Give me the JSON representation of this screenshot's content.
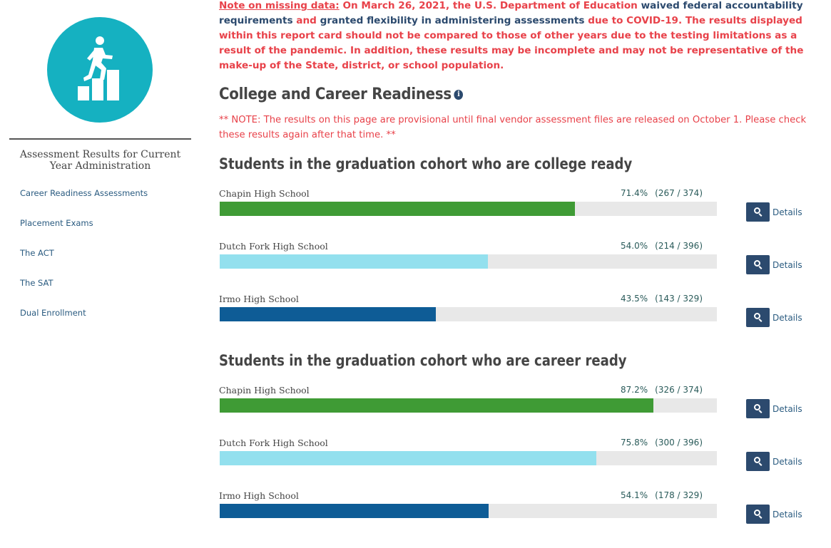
{
  "sidebar": {
    "heading": "Assessment Results for Current Year Administration",
    "items": [
      {
        "label": "Career Readiness Assessments"
      },
      {
        "label": "Placement Exams"
      },
      {
        "label": "The ACT"
      },
      {
        "label": "The SAT"
      },
      {
        "label": "Dual Enrollment"
      }
    ]
  },
  "notice": {
    "lead": "Note on missing data:",
    "part1": " On March 26, 2021, the U.S. Department of Education ",
    "part2": "waived federal accountability requirements",
    "part3": " and ",
    "part4": "granted flexibility in administering assessments",
    "part5": " due to COVID-19. The results displayed within this report card should not be compared to those of other years due to the testing limitations as a result of the pandemic. In addition, these results may be incomplete and may not be representative of the make-up of the State, district, or school population."
  },
  "page_title": "College and Career Readiness",
  "provisional_note": "** NOTE: The results on this page are provisional until final vendor assessment files are released on October 1. Please check these results again after that time. **",
  "details_label": "Details",
  "colors": {
    "chapin": "#3f9b35",
    "dutch_fork": "#93e0ee",
    "irmo": "#0e5c96",
    "track": "#e8e8e8",
    "button": "#2c4a6e",
    "alert": "#e8424a"
  },
  "sections": [
    {
      "title": "Students in the graduation cohort who are college ready",
      "rows": [
        {
          "school": "Chapin High School",
          "percent": "71.4%",
          "counts": "(267 / 374)",
          "value": 71.4,
          "color": "#3f9b35"
        },
        {
          "school": "Dutch Fork High School",
          "percent": "54.0%",
          "counts": "(214 / 396)",
          "value": 54.0,
          "color": "#93e0ee"
        },
        {
          "school": "Irmo High School",
          "percent": "43.5%",
          "counts": "(143 / 329)",
          "value": 43.5,
          "color": "#0e5c96"
        }
      ]
    },
    {
      "title": "Students in the graduation cohort who are career ready",
      "rows": [
        {
          "school": "Chapin High School",
          "percent": "87.2%",
          "counts": "(326 / 374)",
          "value": 87.2,
          "color": "#3f9b35"
        },
        {
          "school": "Dutch Fork High School",
          "percent": "75.8%",
          "counts": "(300 / 396)",
          "value": 75.8,
          "color": "#93e0ee"
        },
        {
          "school": "Irmo High School",
          "percent": "54.1%",
          "counts": "(178 / 329)",
          "value": 54.1,
          "color": "#0e5c96"
        }
      ]
    }
  ]
}
